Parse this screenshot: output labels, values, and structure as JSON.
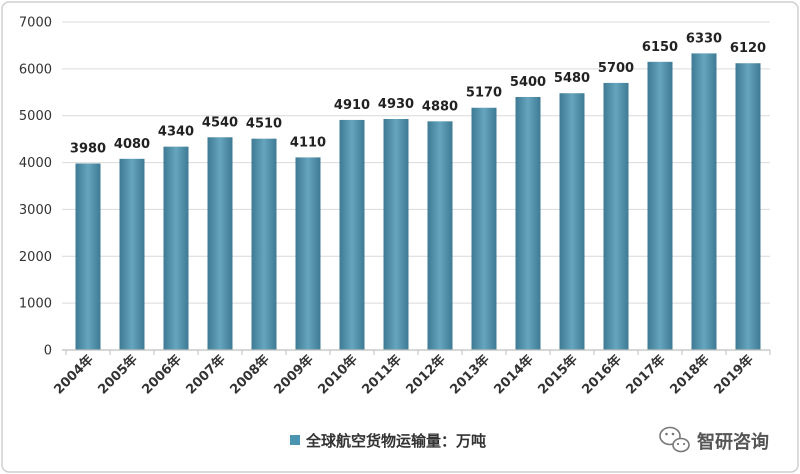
{
  "chart_data": {
    "type": "bar",
    "categories": [
      "2004年",
      "2005年",
      "2006年",
      "2007年",
      "2008年",
      "2009年",
      "2010年",
      "2011年",
      "2012年",
      "2013年",
      "2014年",
      "2015年",
      "2016年",
      "2017年",
      "2018年",
      "2019年"
    ],
    "series": [
      {
        "name": "全球航空货物运输量：万吨",
        "values": [
          3980,
          4080,
          4340,
          4540,
          4510,
          4110,
          4910,
          4930,
          4880,
          5170,
          5400,
          5480,
          5700,
          6150,
          6330,
          6120
        ]
      }
    ],
    "ylim": [
      0,
      7000
    ],
    "yticks": [
      0,
      1000,
      2000,
      3000,
      4000,
      5000,
      6000,
      7000
    ],
    "grid": true,
    "data_labels": true,
    "legend_position": "bottom",
    "bar_color": "#4b95b3",
    "grid_color": "#d9d9d9"
  },
  "watermark": {
    "text": "智研咨询",
    "icon": "wechat-icon"
  }
}
